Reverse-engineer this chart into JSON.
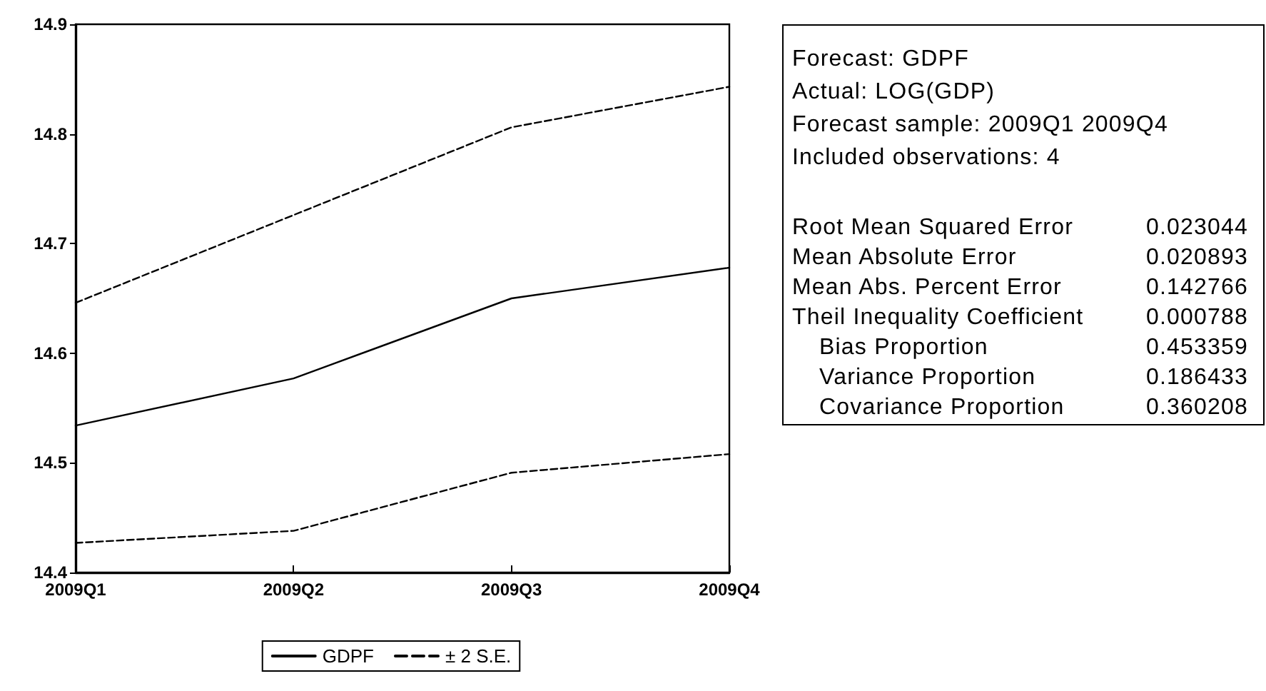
{
  "chart_data": [
    {
      "type": "line",
      "categories": [
        "2009Q1",
        "2009Q2",
        "2009Q3",
        "2009Q4"
      ],
      "series": [
        {
          "name": "GDPF",
          "color": "#000000",
          "values": [
            14.534,
            14.577,
            14.65,
            14.678
          ],
          "line_style": "solid"
        },
        {
          "name": "± 2 S.E.",
          "color": "#000000",
          "values": [
            14.646,
            14.726,
            14.806,
            14.843
          ],
          "line_style": "dashed"
        },
        {
          "color": "#000000",
          "values": [
            14.427,
            14.438,
            14.491,
            14.508
          ],
          "line_style": "dashed"
        }
      ],
      "ylim": [
        14.4,
        14.9
      ],
      "yticks": [
        14.4,
        14.5,
        14.6,
        14.7,
        14.8,
        14.9
      ],
      "grid": false,
      "legend": "bottom",
      "marker": "none"
    },
    {
      "type": "other",
      "annotations": [
        "Forecast: GDPF",
        "Actual: LOG(GDP)",
        "Forecast sample: 2009Q1 2009Q4",
        "Included observations: 4"
      ],
      "categories": [
        "Root Mean Squared Error",
        "Mean Absolute Error",
        "Mean Abs. Percent Error",
        "Theil Inequality Coefficient",
        "Bias Proportion",
        "Variance Proportion",
        "Covariance Proportion"
      ],
      "values": [
        0.023044,
        0.020893,
        0.142766,
        0.000788,
        0.453359,
        0.186433,
        0.360208
      ],
      "data_labels": true
    }
  ]
}
